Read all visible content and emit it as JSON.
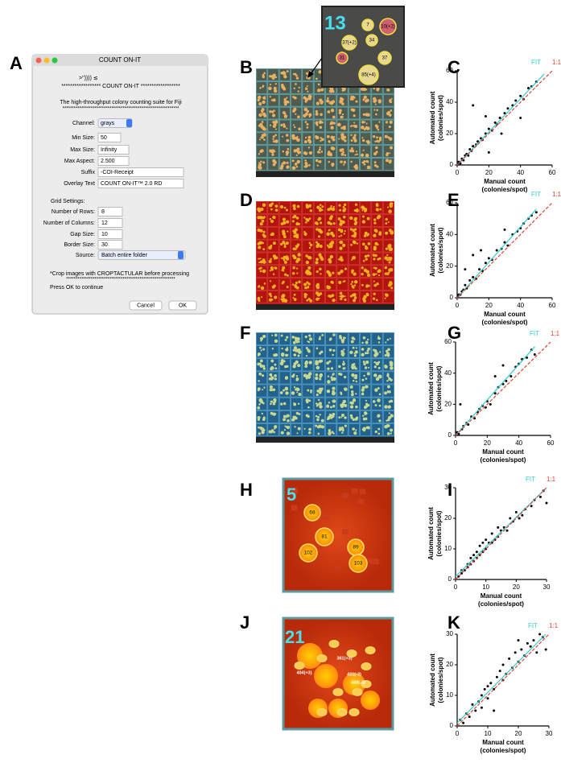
{
  "panel_labels": [
    "A",
    "B",
    "C",
    "D",
    "E",
    "F",
    "G",
    "H",
    "I",
    "J",
    "K"
  ],
  "dialog": {
    "title": "COUNT ON-IT",
    "art": ">\")))) ≲",
    "banner": "****************** COUNT ON-IT ******************",
    "subtitle": "The high-throughput colony counting suite for Fiji",
    "divider": "**************************************************************",
    "fields": [
      {
        "label": "Channel:",
        "value": "grays"
      },
      {
        "label": "Min Size:",
        "value": "50"
      },
      {
        "label": "Max Size:",
        "value": "Infinity"
      },
      {
        "label": "Max Aspect:",
        "value": "2.500"
      },
      {
        "label": "Suffix",
        "value": "-COI-Receipt"
      },
      {
        "label": "Overlay Text",
        "value": "COUNT ON-IT™ 2.0 RD"
      }
    ],
    "grid_heading": "Grid Settings:",
    "grid_fields": [
      {
        "label": "Number of Rows:",
        "value": "8"
      },
      {
        "label": "Number of Columns:",
        "value": "12"
      },
      {
        "label": "Gap Size:",
        "value": "10"
      },
      {
        "label": "Border Size:",
        "value": "30"
      },
      {
        "label": "Source:",
        "value": "Batch entire folder"
      }
    ],
    "note": "*Crop images with CROPTACTULAR before processing",
    "note_divider": "**********************************************************",
    "prompt": "Press OK to continue",
    "cancel": "Cancel",
    "ok": "OK"
  },
  "images": {
    "inset_count": "13",
    "inset_labels": [
      "7",
      "10(+2)",
      "37(+2)",
      "34",
      "31",
      "37",
      "85(+4)"
    ],
    "h_count": "5",
    "h_labels": [
      "68",
      "81",
      "102",
      "89",
      "103"
    ],
    "j_count": "21",
    "j_labels": [
      "361(+3)",
      "404(+3)",
      "431(-3)",
      "448(-3)"
    ]
  },
  "chart_data": [
    {
      "type": "scatter",
      "x_label": [
        "Manual count",
        "(colonies/spot)"
      ],
      "y_label": [
        "Automated count",
        "(colonies/spot)"
      ],
      "xlim": [
        0,
        60
      ],
      "ylim": [
        0,
        60
      ],
      "xticks": [
        0,
        20,
        40,
        60
      ],
      "yticks": [
        0,
        20,
        40,
        60
      ],
      "color": "#000000",
      "x": [
        0.5,
        1,
        2,
        3,
        4,
        5,
        6,
        7,
        8,
        9,
        10,
        12,
        13,
        15,
        16,
        18,
        20,
        22,
        24,
        25,
        27,
        30,
        32,
        35,
        37,
        40,
        42,
        45,
        47,
        50,
        10,
        18,
        28,
        20,
        40
      ],
      "y": [
        0.5,
        2,
        1,
        4,
        3,
        6,
        7,
        6,
        10,
        9,
        12,
        13,
        15,
        17,
        16,
        20,
        23,
        22,
        27,
        26,
        30,
        33,
        36,
        38,
        41,
        44,
        42,
        49,
        50,
        53,
        38,
        31,
        20,
        8,
        30
      ],
      "lines": [
        {
          "name": "FIT",
          "color": "#33cccc",
          "x": [
            0,
            55
          ],
          "y": [
            0,
            58
          ]
        },
        {
          "name": "1:1",
          "color": "#dd4433",
          "dash": true,
          "x": [
            0,
            60
          ],
          "y": [
            0,
            60
          ]
        }
      ]
    },
    {
      "type": "scatter",
      "x_label": [
        "Manual count",
        "(colonies/spot)"
      ],
      "y_label": [
        "Automated count",
        "(colonies/spot)"
      ],
      "xlim": [
        0,
        60
      ],
      "ylim": [
        0,
        60
      ],
      "xticks": [
        0,
        20,
        40,
        60
      ],
      "yticks": [
        0,
        20,
        40,
        60
      ],
      "color": "#000000",
      "x": [
        0.5,
        1,
        2,
        3,
        4,
        5,
        6,
        8,
        10,
        12,
        14,
        16,
        18,
        20,
        22,
        25,
        28,
        30,
        32,
        35,
        38,
        40,
        42,
        45,
        47,
        50,
        5,
        10,
        15,
        30
      ],
      "y": [
        1,
        2,
        2,
        4,
        5,
        8,
        6,
        11,
        13,
        12,
        18,
        17,
        22,
        25,
        24,
        30,
        31,
        35,
        33,
        40,
        42,
        44,
        47,
        50,
        52,
        54,
        18,
        27,
        30,
        43
      ],
      "lines": [
        {
          "name": "FIT",
          "color": "#33cccc",
          "x": [
            0,
            50
          ],
          "y": [
            0,
            56
          ]
        },
        {
          "name": "1:1",
          "color": "#dd4433",
          "dash": true,
          "x": [
            0,
            60
          ],
          "y": [
            0,
            60
          ]
        }
      ]
    },
    {
      "type": "scatter",
      "x_label": [
        "Manual count",
        "(colonies/spot)"
      ],
      "y_label": [
        "Automated count",
        "(colonies/spot)"
      ],
      "xlim": [
        0,
        60
      ],
      "ylim": [
        0,
        60
      ],
      "xticks": [
        0,
        20,
        40,
        60
      ],
      "yticks": [
        0,
        20,
        40,
        60
      ],
      "color": "#000000",
      "x": [
        1,
        2,
        4,
        5,
        7,
        8,
        10,
        12,
        14,
        15,
        17,
        19,
        20,
        22,
        25,
        27,
        30,
        32,
        35,
        38,
        40,
        42,
        45,
        48,
        50,
        3,
        25,
        30
      ],
      "y": [
        2,
        1,
        4,
        6,
        8,
        7,
        12,
        11,
        15,
        17,
        19,
        18,
        22,
        20,
        27,
        31,
        33,
        35,
        38,
        44,
        46,
        49,
        50,
        55,
        52,
        20,
        38,
        45
      ],
      "lines": [
        {
          "name": "FIT",
          "color": "#33cccc",
          "x": [
            0,
            50
          ],
          "y": [
            0,
            57
          ]
        },
        {
          "name": "1:1",
          "color": "#dd4433",
          "dash": true,
          "x": [
            0,
            60
          ],
          "y": [
            0,
            60
          ]
        }
      ]
    },
    {
      "type": "scatter",
      "x_label": [
        "Manual count",
        "(colonies/spot)"
      ],
      "y_label": [
        "Automated count",
        "(colonies/spot)"
      ],
      "xlim": [
        0,
        30
      ],
      "ylim": [
        0,
        30
      ],
      "xticks": [
        0,
        10,
        20,
        30
      ],
      "yticks": [
        0,
        10,
        20,
        30
      ],
      "color": "#000000",
      "x": [
        1,
        2,
        2,
        3,
        4,
        4,
        5,
        5,
        6,
        6,
        7,
        7,
        8,
        8,
        9,
        9,
        10,
        10,
        11,
        12,
        12,
        13,
        14,
        14,
        15,
        16,
        17,
        18,
        19,
        20,
        21,
        22,
        23,
        25,
        26,
        28,
        29,
        30
      ],
      "y": [
        1,
        2,
        3,
        3,
        4,
        5,
        5,
        7,
        6,
        8,
        7,
        9,
        8,
        11,
        9,
        12,
        10,
        13,
        12,
        12,
        15,
        13,
        14,
        17,
        16,
        17,
        16,
        20,
        19,
        22,
        20,
        21,
        23,
        24,
        26,
        27,
        29,
        25
      ],
      "lines": [
        {
          "name": "FIT",
          "color": "#33cccc",
          "x": [
            0,
            30
          ],
          "y": [
            1,
            30
          ]
        },
        {
          "name": "1:1",
          "color": "#dd4433",
          "dash": true,
          "x": [
            0,
            30
          ],
          "y": [
            0,
            30
          ]
        }
      ]
    },
    {
      "type": "scatter",
      "x_label": [
        "Manual count",
        "(colonies/spot)"
      ],
      "y_label": [
        "Automated count",
        "(colonies/spot)"
      ],
      "xlim": [
        0,
        30
      ],
      "ylim": [
        0,
        30
      ],
      "xticks": [
        0,
        10,
        20,
        30
      ],
      "yticks": [
        0,
        10,
        20,
        30
      ],
      "color": "#000000",
      "x": [
        1,
        2,
        3,
        4,
        5,
        6,
        7,
        8,
        8,
        9,
        10,
        10,
        11,
        12,
        13,
        14,
        15,
        15,
        16,
        17,
        18,
        19,
        20,
        21,
        22,
        23,
        24,
        25,
        26,
        27,
        28,
        29,
        12,
        20
      ],
      "y": [
        2,
        1,
        4,
        3,
        7,
        5,
        8,
        6,
        10,
        12,
        9,
        13,
        14,
        12,
        16,
        18,
        15,
        20,
        17,
        22,
        19,
        24,
        21,
        25,
        23,
        27,
        26,
        28,
        24,
        30,
        29,
        25,
        5,
        28
      ],
      "lines": [
        {
          "name": "FIT",
          "color": "#33cccc",
          "x": [
            0,
            29
          ],
          "y": [
            1,
            30
          ]
        },
        {
          "name": "1:1",
          "color": "#dd4433",
          "dash": true,
          "x": [
            0,
            30
          ],
          "y": [
            0,
            30
          ]
        }
      ]
    }
  ]
}
